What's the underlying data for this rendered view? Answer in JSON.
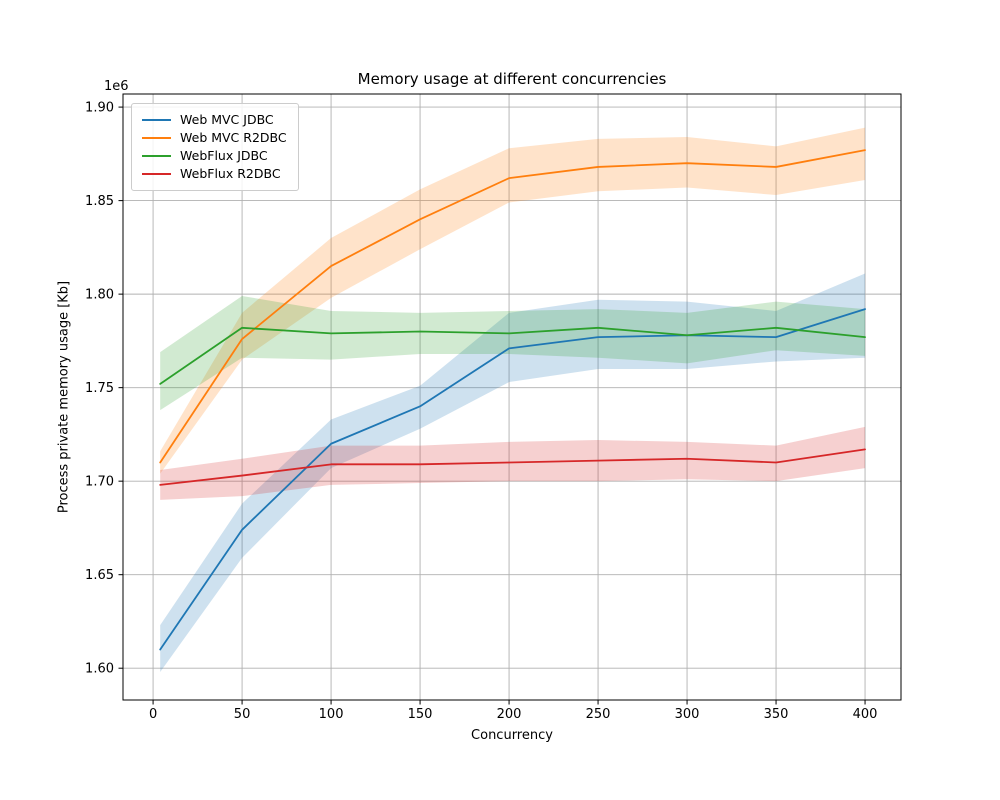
{
  "chart_data": {
    "type": "line",
    "title": "Memory usage at different concurrencies",
    "xlabel": "Concurrency",
    "ylabel": "Process private memory usage [Kb]",
    "y_offset_text": "1e6",
    "x": [
      4,
      50,
      100,
      150,
      200,
      250,
      300,
      350,
      400
    ],
    "x_ticks": [
      0,
      50,
      100,
      150,
      200,
      250,
      300,
      350,
      400
    ],
    "y_ticks": [
      1600000,
      1650000,
      1700000,
      1750000,
      1800000,
      1850000,
      1900000
    ],
    "xlim": [
      -16.9,
      420.2
    ],
    "ylim": [
      1583000,
      1907000
    ],
    "grid": true,
    "legend_position": "upper left",
    "style": {
      "grid_color": "#b0b0b0",
      "spine_color": "#000000",
      "tick_text_color": "#000000",
      "band_alpha": 0.22,
      "line_width": 1.8
    },
    "series": [
      {
        "name": "Web MVC JDBC",
        "color": "#1f77b4",
        "values": [
          1610000,
          1674000,
          1720000,
          1740000,
          1771000,
          1777000,
          1778000,
          1777000,
          1792000
        ],
        "band_lower": [
          1598000,
          1659000,
          1707000,
          1728000,
          1753000,
          1760000,
          1760000,
          1764000,
          1766000
        ],
        "band_upper": [
          1623000,
          1688000,
          1733000,
          1751000,
          1790000,
          1797000,
          1796000,
          1791000,
          1811000
        ]
      },
      {
        "name": "Web MVC R2DBC",
        "color": "#ff7f0e",
        "values": [
          1710000,
          1776000,
          1815000,
          1840000,
          1862000,
          1868000,
          1870000,
          1868000,
          1877000
        ],
        "band_lower": [
          1704000,
          1765000,
          1798000,
          1824000,
          1849000,
          1855000,
          1857000,
          1853000,
          1861000
        ],
        "band_upper": [
          1716000,
          1790000,
          1830000,
          1856000,
          1878000,
          1883000,
          1884000,
          1879000,
          1889000
        ]
      },
      {
        "name": "WebFlux JDBC",
        "color": "#2ca02c",
        "values": [
          1752000,
          1782000,
          1779000,
          1780000,
          1779000,
          1782000,
          1778000,
          1782000,
          1777000
        ],
        "band_lower": [
          1738000,
          1766000,
          1765000,
          1768000,
          1768000,
          1766000,
          1763000,
          1770000,
          1767000
        ],
        "band_upper": [
          1769000,
          1799000,
          1791000,
          1790000,
          1791000,
          1792000,
          1790000,
          1796000,
          1792000
        ]
      },
      {
        "name": "WebFlux R2DBC",
        "color": "#d62728",
        "values": [
          1698000,
          1703000,
          1709000,
          1709000,
          1710000,
          1711000,
          1712000,
          1710000,
          1717000
        ],
        "band_lower": [
          1690000,
          1692000,
          1698000,
          1699000,
          1700000,
          1700000,
          1701000,
          1700000,
          1707000
        ],
        "band_upper": [
          1706000,
          1712000,
          1719000,
          1719000,
          1721000,
          1722000,
          1721000,
          1719000,
          1729000
        ]
      }
    ]
  }
}
